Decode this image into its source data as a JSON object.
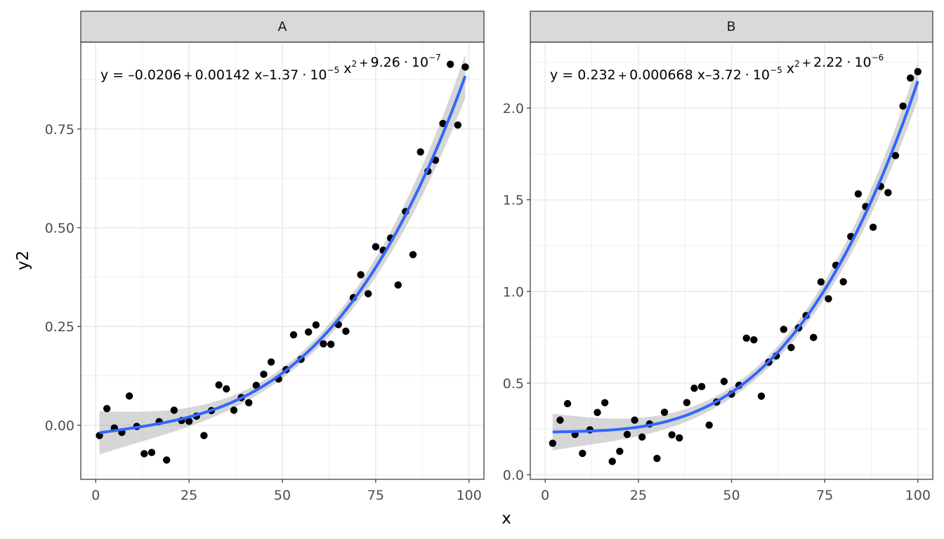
{
  "axis_titles": {
    "x": "x",
    "y": "y2"
  },
  "colors": {
    "fit_line": "#3366FF",
    "ribbon": "#999999",
    "points": "#000000",
    "strip_bg": "#D9D9D9",
    "grid": "#EBEBEB",
    "panel_border": "#333333",
    "tick_text": "#4D4D4D"
  },
  "chart_data": [
    {
      "type": "scatter",
      "panel": "A",
      "xlabel": "x",
      "ylabel": "y2",
      "xlim": [
        -4,
        104
      ],
      "ylim": [
        -0.137,
        0.97
      ],
      "xticks": [
        0,
        25,
        50,
        75,
        100
      ],
      "xtick_labels": [
        "0",
        "25",
        "50",
        "75",
        "100"
      ],
      "yticks": [
        0,
        0.25,
        0.5,
        0.75
      ],
      "ytick_labels": [
        "0.00",
        "0.25",
        "0.50",
        "0.75"
      ],
      "grid": true,
      "equation": {
        "lhs": "y = ",
        "terms": [
          {
            "op": "",
            "sign": "–",
            "coef": "0.0206",
            "var": "",
            "mult": "",
            "exp": ""
          },
          {
            "op": "+",
            "sign": "",
            "coef": "0.00142",
            "var": "x",
            "mult": "",
            "exp": ""
          },
          {
            "op": "",
            "sign": "–",
            "coef": "1.37",
            "var": "x",
            "mult": "10",
            "mult_exp": "−5",
            "exp": "2"
          },
          {
            "op": "+",
            "sign": "",
            "coef": "9.26",
            "var": "",
            "mult": "10",
            "mult_exp": "−7",
            "exp": ""
          }
        ]
      },
      "fit": {
        "method": "polynomial",
        "coefficients": [
          -0.0206,
          0.00142,
          -1.37e-05,
          9.26e-07
        ]
      },
      "ribbon_halfwidth_ends": 0.055,
      "ribbon_halfwidth_mid": 0.013,
      "points": [
        [
          1,
          -0.026
        ],
        [
          3,
          0.042
        ],
        [
          5,
          -0.007
        ],
        [
          7,
          -0.018
        ],
        [
          9,
          0.074
        ],
        [
          11,
          -0.003
        ],
        [
          13,
          -0.072
        ],
        [
          15,
          -0.069
        ],
        [
          17,
          0.009
        ],
        [
          19,
          -0.088
        ],
        [
          21,
          0.038
        ],
        [
          23,
          0.012
        ],
        [
          25,
          0.01
        ],
        [
          27,
          0.023
        ],
        [
          29,
          -0.026
        ],
        [
          31,
          0.037
        ],
        [
          33,
          0.102
        ],
        [
          35,
          0.092
        ],
        [
          37,
          0.038
        ],
        [
          39,
          0.07
        ],
        [
          41,
          0.057
        ],
        [
          43,
          0.101
        ],
        [
          45,
          0.129
        ],
        [
          47,
          0.16
        ],
        [
          49,
          0.117
        ],
        [
          51,
          0.141
        ],
        [
          53,
          0.229
        ],
        [
          55,
          0.167
        ],
        [
          57,
          0.236
        ],
        [
          59,
          0.254
        ],
        [
          61,
          0.206
        ],
        [
          63,
          0.205
        ],
        [
          65,
          0.255
        ],
        [
          67,
          0.238
        ],
        [
          69,
          0.323
        ],
        [
          71,
          0.381
        ],
        [
          73,
          0.333
        ],
        [
          75,
          0.452
        ],
        [
          77,
          0.443
        ],
        [
          79,
          0.474
        ],
        [
          81,
          0.355
        ],
        [
          83,
          0.541
        ],
        [
          85,
          0.432
        ],
        [
          87,
          0.692
        ],
        [
          89,
          0.643
        ],
        [
          91,
          0.671
        ],
        [
          93,
          0.764
        ],
        [
          95,
          0.914
        ],
        [
          97,
          0.76
        ],
        [
          99,
          0.907
        ]
      ]
    },
    {
      "type": "scatter",
      "panel": "B",
      "xlabel": "x",
      "ylabel": "y2",
      "xlim": [
        -4,
        104
      ],
      "ylim": [
        -0.025,
        2.36
      ],
      "xticks": [
        0,
        25,
        50,
        75,
        100
      ],
      "xtick_labels": [
        "0",
        "25",
        "50",
        "75",
        "100"
      ],
      "yticks": [
        0,
        0.5,
        1.0,
        1.5,
        2.0
      ],
      "ytick_labels": [
        "0.0",
        "0.5",
        "1.0",
        "1.5",
        "2.0"
      ],
      "grid": true,
      "equation": {
        "lhs": "y = ",
        "terms": [
          {
            "op": "",
            "sign": "",
            "coef": "0.232",
            "var": "",
            "mult": "",
            "exp": ""
          },
          {
            "op": "+",
            "sign": "",
            "coef": "0.000668",
            "var": "x",
            "mult": "",
            "exp": ""
          },
          {
            "op": "",
            "sign": "–",
            "coef": "3.72",
            "var": "x",
            "mult": "10",
            "mult_exp": "−5",
            "exp": "2"
          },
          {
            "op": "+",
            "sign": "",
            "coef": "2.22",
            "var": "",
            "mult": "10",
            "mult_exp": "−6",
            "exp": ""
          }
        ]
      },
      "fit": {
        "method": "polynomial",
        "coefficients": [
          0.232,
          0.000668,
          -3.72e-05,
          2.22e-06
        ]
      },
      "ribbon_halfwidth_ends": 0.1,
      "ribbon_halfwidth_mid": 0.03,
      "points": [
        [
          2,
          0.172
        ],
        [
          4,
          0.298
        ],
        [
          6,
          0.388
        ],
        [
          8,
          0.22
        ],
        [
          10,
          0.117
        ],
        [
          12,
          0.245
        ],
        [
          14,
          0.34
        ],
        [
          16,
          0.393
        ],
        [
          18,
          0.073
        ],
        [
          20,
          0.128
        ],
        [
          22,
          0.22
        ],
        [
          24,
          0.298
        ],
        [
          26,
          0.206
        ],
        [
          28,
          0.277
        ],
        [
          30,
          0.089
        ],
        [
          32,
          0.341
        ],
        [
          34,
          0.218
        ],
        [
          36,
          0.201
        ],
        [
          38,
          0.394
        ],
        [
          40,
          0.472
        ],
        [
          42,
          0.481
        ],
        [
          44,
          0.271
        ],
        [
          46,
          0.397
        ],
        [
          48,
          0.509
        ],
        [
          50,
          0.44
        ],
        [
          52,
          0.488
        ],
        [
          54,
          0.745
        ],
        [
          56,
          0.736
        ],
        [
          58,
          0.429
        ],
        [
          60,
          0.614
        ],
        [
          62,
          0.648
        ],
        [
          64,
          0.793
        ],
        [
          66,
          0.694
        ],
        [
          68,
          0.801
        ],
        [
          70,
          0.868
        ],
        [
          72,
          0.749
        ],
        [
          74,
          1.052
        ],
        [
          76,
          0.96
        ],
        [
          78,
          1.143
        ],
        [
          80,
          1.053
        ],
        [
          82,
          1.3
        ],
        [
          84,
          1.532
        ],
        [
          86,
          1.463
        ],
        [
          88,
          1.35
        ],
        [
          90,
          1.573
        ],
        [
          92,
          1.539
        ],
        [
          94,
          1.741
        ],
        [
          96,
          2.011
        ],
        [
          98,
          2.164
        ],
        [
          100,
          2.199
        ]
      ]
    }
  ]
}
